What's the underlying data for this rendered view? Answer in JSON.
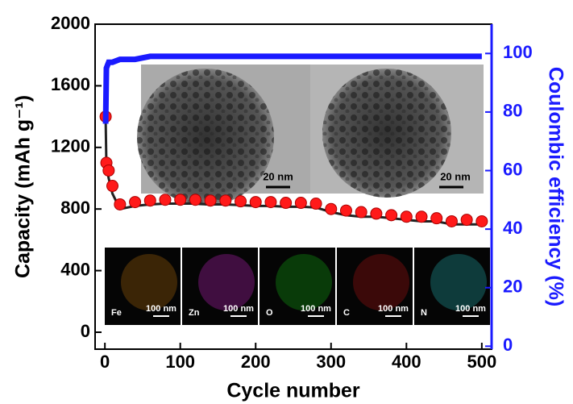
{
  "chart_data": {
    "type": "scatter",
    "xlabel": "Cycle number",
    "ylabel": "Capacity (mAh g⁻¹)",
    "y2label": "Coulombic efficiency (%)",
    "x": [
      1,
      2,
      5,
      10,
      20,
      40,
      60,
      80,
      100,
      120,
      140,
      160,
      180,
      200,
      220,
      240,
      260,
      280,
      300,
      320,
      340,
      360,
      380,
      400,
      420,
      440,
      460,
      480,
      500
    ],
    "series": [
      {
        "color": "#222222",
        "values": [
          1380,
          1080,
          1000,
          900,
          800,
          820,
          830,
          835,
          835,
          835,
          830,
          830,
          825,
          820,
          820,
          815,
          815,
          810,
          780,
          760,
          750,
          750,
          740,
          730,
          720,
          720,
          700,
          700,
          700
        ]
      },
      {
        "color": "#ff1a1a",
        "values": [
          1400,
          1100,
          1050,
          950,
          830,
          845,
          855,
          860,
          860,
          860,
          855,
          855,
          850,
          845,
          845,
          840,
          840,
          835,
          800,
          790,
          780,
          770,
          760,
          750,
          750,
          740,
          720,
          730,
          720
        ]
      },
      {
        "color": "#1a1aff",
        "axis": "y2",
        "values": [
          76,
          95,
          97,
          97,
          98,
          98,
          99,
          99,
          99,
          99,
          99,
          99,
          99,
          99,
          99,
          99,
          99,
          99,
          99,
          99,
          99,
          99,
          99,
          99,
          99,
          99,
          99,
          99,
          99
        ]
      }
    ],
    "xlim": [
      -13,
      513
    ],
    "ylim": [
      -110,
      2000
    ],
    "y2lim": [
      -1,
      110
    ],
    "xticks": [
      0,
      100,
      200,
      300,
      400,
      500
    ],
    "yticks": [
      0,
      400,
      800,
      1200,
      1600,
      2000
    ],
    "y2ticks": [
      0,
      20,
      40,
      60,
      80,
      100
    ],
    "insets": {
      "tem_scale": [
        "20 nm",
        "20 nm"
      ],
      "map_elements": [
        "Fe",
        "Zn",
        "O",
        "C",
        "N"
      ],
      "map_scale": [
        "100 nm",
        "100 nm",
        "100 nm",
        "100 nm",
        "100 nm"
      ]
    }
  }
}
